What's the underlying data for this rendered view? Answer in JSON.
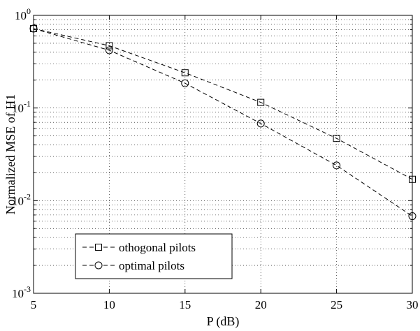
{
  "chart_data": {
    "type": "line",
    "xlabel": "P (dB)",
    "ylabel": "Normalized MSE of H1",
    "xlim": [
      5,
      30
    ],
    "ylim": [
      0.001,
      1
    ],
    "yscale": "log",
    "grid": true,
    "x_ticks": [
      "5",
      "10",
      "15",
      "20",
      "25",
      "30"
    ],
    "y_ticks": [
      {
        "base": "10",
        "exp": "-3",
        "value": 0.001
      },
      {
        "base": "10",
        "exp": "-2",
        "value": 0.01
      },
      {
        "base": "10",
        "exp": "-1",
        "value": 0.1
      },
      {
        "base": "10",
        "exp": "0",
        "value": 1
      }
    ],
    "legend_position": "bottom-left",
    "series": [
      {
        "name": "othogonal pilots",
        "marker": "square",
        "style": "dashed",
        "x": [
          5,
          10,
          15,
          20,
          25,
          30
        ],
        "y": [
          0.72,
          0.47,
          0.24,
          0.115,
          0.047,
          0.017
        ]
      },
      {
        "name": "optimal pilots",
        "marker": "circle",
        "style": "dashed",
        "x": [
          5,
          10,
          15,
          20,
          25,
          30
        ],
        "y": [
          0.72,
          0.42,
          0.185,
          0.068,
          0.024,
          0.0068
        ]
      }
    ]
  }
}
